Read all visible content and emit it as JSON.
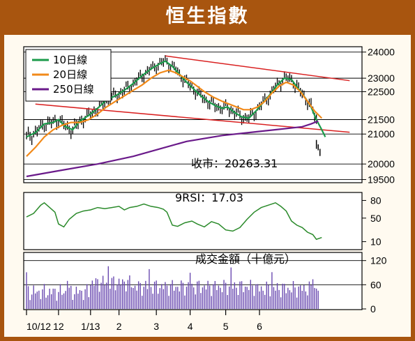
{
  "title": "恒生指數",
  "chart_data": [
    {
      "type": "candlestick-line",
      "panel": "price",
      "y_ticks": [
        19500,
        20000,
        21000,
        21500,
        22500,
        23000,
        24000
      ],
      "ylim": [
        19400,
        24100
      ],
      "close_annotation": "收市：20263.31",
      "close_value": 20263.31,
      "legend": {
        "position": "top-left",
        "entries": [
          "10日線",
          "20日線",
          "250日線"
        ]
      },
      "series": [
        {
          "name": "10日線",
          "color": "#1a9a4a",
          "values": [
            [
              0,
              20900
            ],
            [
              5,
              21050
            ],
            [
              10,
              21350
            ],
            [
              15,
              21400
            ],
            [
              18,
              21500
            ],
            [
              22,
              21250
            ],
            [
              26,
              21150
            ],
            [
              30,
              21450
            ],
            [
              35,
              21650
            ],
            [
              40,
              21900
            ],
            [
              45,
              22200
            ],
            [
              50,
              22350
            ],
            [
              55,
              22550
            ],
            [
              60,
              22800
            ],
            [
              65,
              23100
            ],
            [
              70,
              23350
            ],
            [
              75,
              23550
            ],
            [
              78,
              23650
            ],
            [
              82,
              23450
            ],
            [
              86,
              23150
            ],
            [
              90,
              22850
            ],
            [
              94,
              22600
            ],
            [
              98,
              22350
            ],
            [
              102,
              22150
            ],
            [
              106,
              22000
            ],
            [
              110,
              21900
            ],
            [
              113,
              21950
            ],
            [
              117,
              21750
            ],
            [
              121,
              21600
            ],
            [
              125,
              21550
            ],
            [
              129,
              21800
            ],
            [
              133,
              22100
            ],
            [
              137,
              22400
            ],
            [
              141,
              22750
            ],
            [
              145,
              23000
            ],
            [
              149,
              22950
            ],
            [
              153,
              22600
            ],
            [
              157,
              22250
            ],
            [
              160,
              21950
            ],
            [
              163,
              21500
            ],
            [
              166,
              21150
            ],
            [
              168,
              20900
            ]
          ]
        },
        {
          "name": "20日線",
          "color": "#f28a1a",
          "values": [
            [
              0,
              20250
            ],
            [
              5,
              20550
            ],
            [
              10,
              20900
            ],
            [
              15,
              21150
            ],
            [
              20,
              21300
            ],
            [
              25,
              21400
            ],
            [
              30,
              21400
            ],
            [
              35,
              21500
            ],
            [
              40,
              21700
            ],
            [
              45,
              21950
            ],
            [
              50,
              22150
            ],
            [
              55,
              22350
            ],
            [
              60,
              22550
            ],
            [
              65,
              22750
            ],
            [
              70,
              23000
            ],
            [
              75,
              23200
            ],
            [
              80,
              23300
            ],
            [
              84,
              23200
            ],
            [
              88,
              23050
            ],
            [
              92,
              22900
            ],
            [
              96,
              22700
            ],
            [
              100,
              22500
            ],
            [
              105,
              22300
            ],
            [
              110,
              22150
            ],
            [
              114,
              22050
            ],
            [
              118,
              21950
            ],
            [
              122,
              21850
            ],
            [
              126,
              21850
            ],
            [
              130,
              21950
            ],
            [
              134,
              22150
            ],
            [
              138,
              22450
            ],
            [
              142,
              22700
            ],
            [
              146,
              22850
            ],
            [
              150,
              22750
            ],
            [
              154,
              22500
            ],
            [
              158,
              22150
            ],
            [
              162,
              21800
            ],
            [
              166,
              21550
            ]
          ]
        },
        {
          "name": "250日線",
          "color": "#6a1a8a",
          "values": [
            [
              0,
              19600
            ],
            [
              20,
              19800
            ],
            [
              40,
              20000
            ],
            [
              60,
              20250
            ],
            [
              75,
              20500
            ],
            [
              90,
              20750
            ],
            [
              110,
              20950
            ],
            [
              125,
              21050
            ],
            [
              140,
              21150
            ],
            [
              155,
              21250
            ],
            [
              160,
              21350
            ],
            [
              164,
              21450
            ]
          ]
        }
      ],
      "trend_lines": [
        {
          "color": "#d92020",
          "from": [
            78,
            23850
          ],
          "to": [
            166,
            23050
          ]
        },
        {
          "color": "#d92020",
          "from": [
            5,
            22050
          ],
          "to": [
            166,
            21150
          ]
        }
      ]
    },
    {
      "type": "line",
      "panel": "rsi",
      "label": "9RSI：17.03",
      "y_ticks": [
        10,
        50,
        80
      ],
      "ylim": [
        0,
        90
      ],
      "series": [
        {
          "name": "9RSI",
          "color": "#2a8a2a",
          "values": [
            [
              0,
              52
            ],
            [
              4,
              58
            ],
            [
              8,
              72
            ],
            [
              10,
              76
            ],
            [
              13,
              68
            ],
            [
              16,
              60
            ],
            [
              18,
              40
            ],
            [
              21,
              35
            ],
            [
              24,
              48
            ],
            [
              28,
              58
            ],
            [
              32,
              62
            ],
            [
              36,
              64
            ],
            [
              40,
              68
            ],
            [
              44,
              66
            ],
            [
              48,
              68
            ],
            [
              52,
              70
            ],
            [
              55,
              64
            ],
            [
              58,
              68
            ],
            [
              62,
              70
            ],
            [
              66,
              74
            ],
            [
              70,
              70
            ],
            [
              74,
              68
            ],
            [
              77,
              65
            ],
            [
              79,
              60
            ],
            [
              82,
              38
            ],
            [
              85,
              36
            ],
            [
              89,
              42
            ],
            [
              93,
              45
            ],
            [
              96,
              40
            ],
            [
              100,
              35
            ],
            [
              104,
              44
            ],
            [
              108,
              40
            ],
            [
              112,
              30
            ],
            [
              116,
              28
            ],
            [
              120,
              34
            ],
            [
              124,
              48
            ],
            [
              128,
              60
            ],
            [
              132,
              68
            ],
            [
              136,
              72
            ],
            [
              140,
              76
            ],
            [
              143,
              70
            ],
            [
              146,
              62
            ],
            [
              149,
              45
            ],
            [
              152,
              38
            ],
            [
              155,
              34
            ],
            [
              158,
              26
            ],
            [
              161,
              22
            ],
            [
              163,
              14
            ],
            [
              166,
              17
            ]
          ]
        }
      ]
    },
    {
      "type": "bar",
      "panel": "volume",
      "label": "成交金額（十億元）",
      "y_ticks": [
        0,
        60,
        120
      ],
      "ylim": [
        0,
        135
      ],
      "color": "#6a4ab0"
    }
  ],
  "x_ticks": [
    "10/12",
    "12",
    "1/13",
    "2",
    "3",
    "4",
    "5",
    "6"
  ],
  "x_tick_index": [
    0,
    18,
    36,
    52,
    73,
    92,
    112,
    131
  ]
}
